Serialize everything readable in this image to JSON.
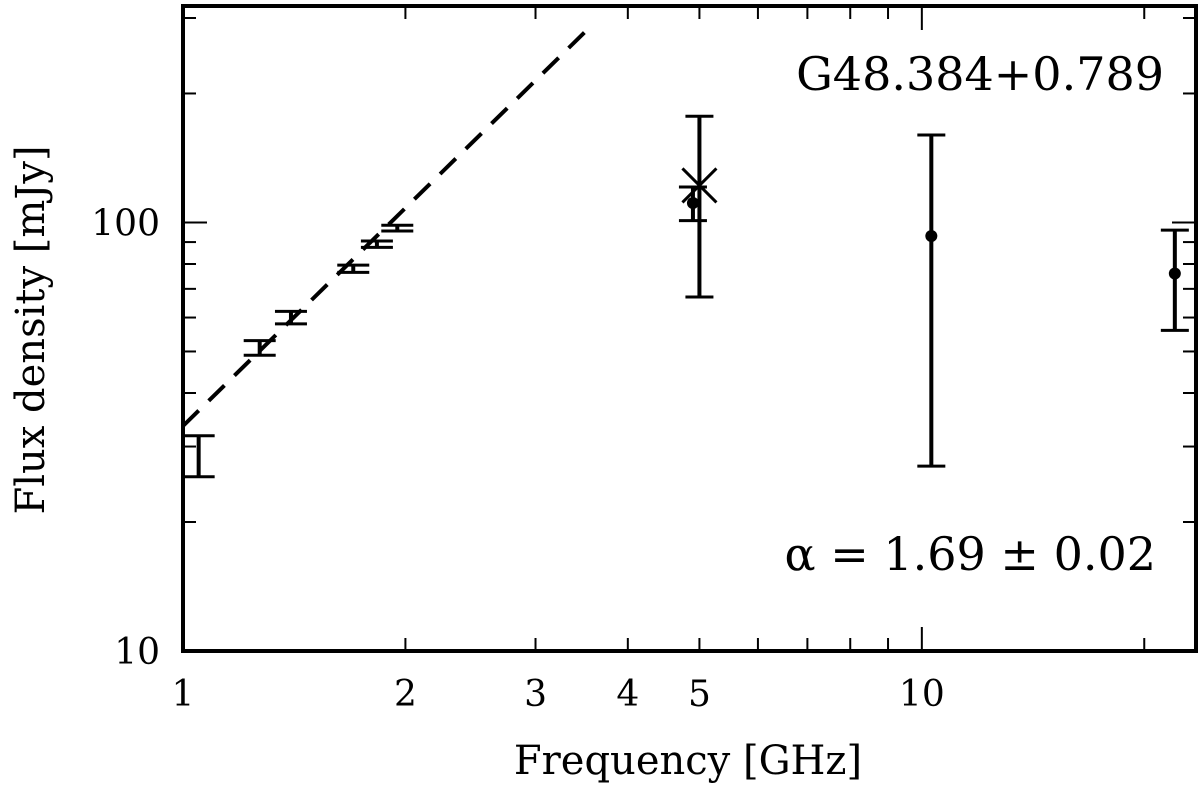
{
  "chart_data": {
    "type": "scatter",
    "title": "",
    "xlabel": "Frequency [GHz]",
    "ylabel": "Flux density [mJy]",
    "xscale": "log",
    "yscale": "log",
    "xlim": [
      1,
      23.5
    ],
    "ylim": [
      10,
      320
    ],
    "grid": false,
    "x_tick_labels": [
      {
        "value": 1,
        "label": "1"
      },
      {
        "value": 2,
        "label": "2"
      },
      {
        "value": 3,
        "label": "3"
      },
      {
        "value": 4,
        "label": "4"
      },
      {
        "value": 5,
        "label": "5"
      },
      {
        "value": 10,
        "label": "10"
      }
    ],
    "y_tick_labels": [
      {
        "value": 10,
        "label": "10"
      },
      {
        "value": 100,
        "label": "100"
      }
    ],
    "annotations": {
      "source_name": "G48.384+0.789",
      "spectral_index": "α = 1.69 ± 0.02"
    },
    "series": [
      {
        "marker": "none",
        "points": [
          {
            "x": 1.05,
            "y": 28.5,
            "ylow": 25.5,
            "yhigh": 31.8
          },
          {
            "x": 1.27,
            "y": 51.0,
            "ylow": 49.0,
            "yhigh": 53.0
          },
          {
            "x": 1.4,
            "y": 60.0,
            "ylow": 58.0,
            "yhigh": 62.0
          },
          {
            "x": 1.7,
            "y": 78.0,
            "ylow": 76.5,
            "yhigh": 79.5
          },
          {
            "x": 1.83,
            "y": 89.0,
            "ylow": 87.5,
            "yhigh": 90.5
          },
          {
            "x": 1.95,
            "y": 97.0,
            "ylow": 95.5,
            "yhigh": 98.5
          }
        ]
      },
      {
        "marker": "dot",
        "points": [
          {
            "x": 4.9,
            "y": 111.0,
            "ylow": 101.0,
            "yhigh": 121.0
          },
          {
            "x": 10.3,
            "y": 93.0,
            "ylow": 27.0,
            "yhigh": 160.0
          },
          {
            "x": 22.0,
            "y": 76.0,
            "ylow": 56.0,
            "yhigh": 96.0
          }
        ]
      },
      {
        "marker": "cross",
        "points": [
          {
            "x": 5.0,
            "y": 122.0,
            "ylow": 67.0,
            "yhigh": 177.0
          }
        ]
      }
    ],
    "fit_line": {
      "style": "dashed",
      "alpha": 1.69,
      "x_range": [
        1.0,
        3.55
      ],
      "y_at_1GHz": 33.5
    }
  }
}
